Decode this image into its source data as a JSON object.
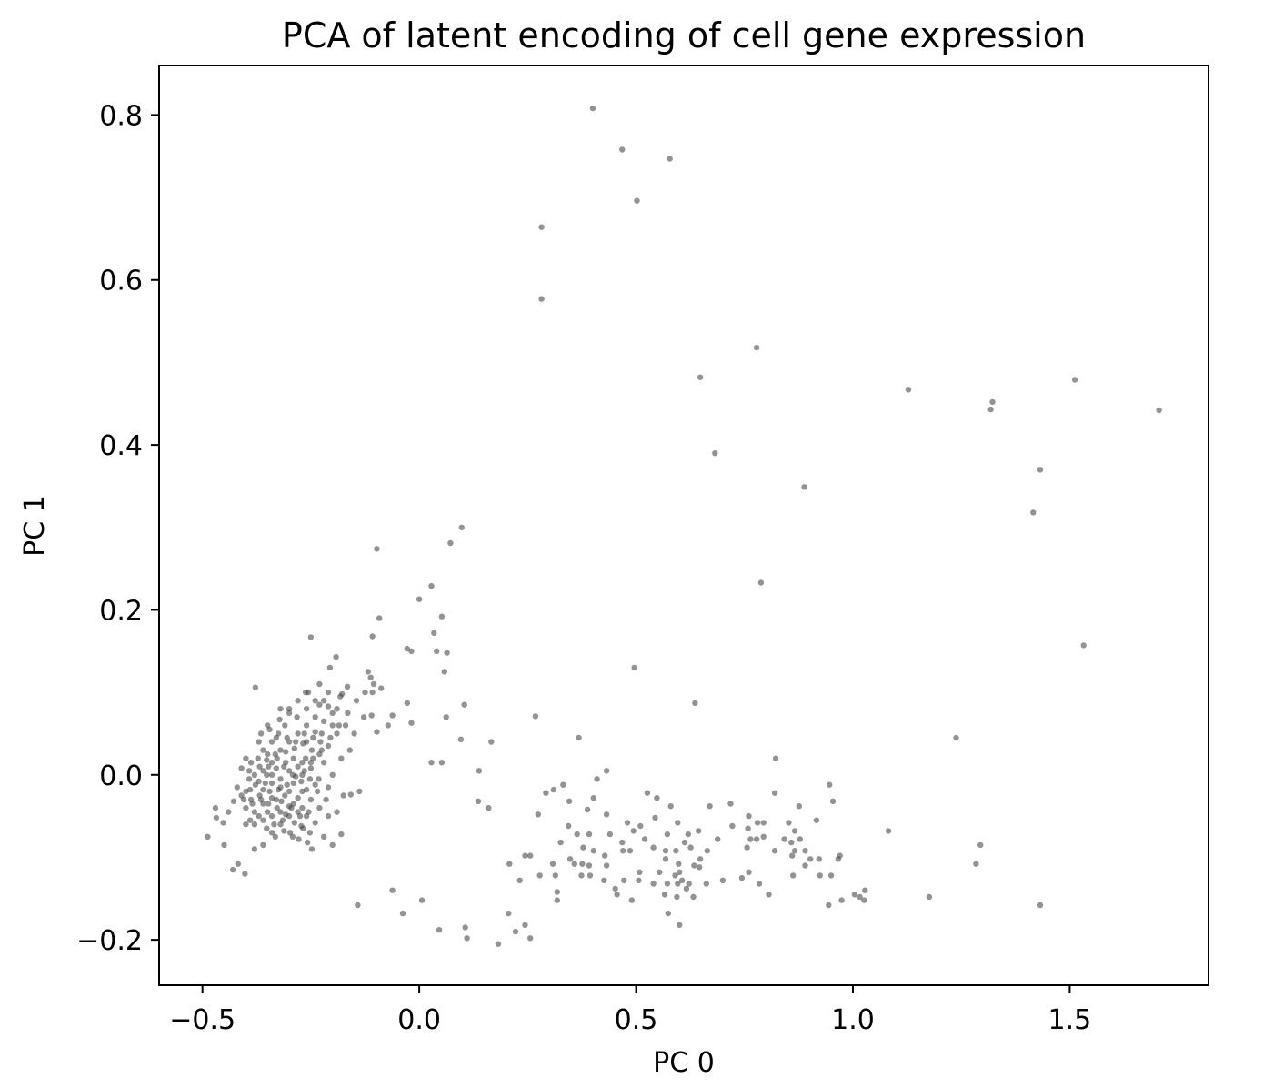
{
  "chart_data": {
    "type": "scatter",
    "title": "PCA of latent encoding of cell gene expression",
    "xlabel": "PC 0",
    "ylabel": "PC 1",
    "xlim": [
      -0.6,
      1.82
    ],
    "ylim": [
      -0.255,
      0.86
    ],
    "xticks": [
      {
        "value": -0.5,
        "label": "−0.5"
      },
      {
        "value": 0.0,
        "label": "0.0"
      },
      {
        "value": 0.5,
        "label": "0.5"
      },
      {
        "value": 1.0,
        "label": "1.0"
      },
      {
        "value": 1.5,
        "label": "1.5"
      }
    ],
    "yticks": [
      {
        "value": -0.2,
        "label": "−0.2"
      },
      {
        "value": 0.0,
        "label": "0.0"
      },
      {
        "value": 0.2,
        "label": "0.2"
      },
      {
        "value": 0.4,
        "label": "0.4"
      },
      {
        "value": 0.6,
        "label": "0.6"
      },
      {
        "value": 0.8,
        "label": "0.8"
      }
    ],
    "grid": false,
    "legend": "none",
    "point_color": "#3a3a3a",
    "point_opacity": 0.55,
    "points": [
      [
        0.4,
        0.808
      ],
      [
        0.468,
        0.758
      ],
      [
        0.578,
        0.747
      ],
      [
        0.502,
        0.696
      ],
      [
        0.282,
        0.664
      ],
      [
        0.282,
        0.577
      ],
      [
        0.778,
        0.518
      ],
      [
        0.648,
        0.482
      ],
      [
        1.128,
        0.467
      ],
      [
        1.512,
        0.479
      ],
      [
        1.322,
        0.452
      ],
      [
        1.318,
        0.443
      ],
      [
        1.706,
        0.442
      ],
      [
        0.682,
        0.39
      ],
      [
        0.888,
        0.349
      ],
      [
        1.432,
        0.37
      ],
      [
        1.416,
        0.318
      ],
      [
        0.788,
        0.233
      ],
      [
        1.532,
        0.157
      ],
      [
        0.496,
        0.13
      ],
      [
        0.636,
        0.087
      ],
      [
        1.238,
        0.045
      ],
      [
        0.822,
        0.02
      ],
      [
        0.268,
        0.071
      ],
      [
        0.098,
        0.3
      ],
      [
        0.072,
        0.281
      ],
      [
        -0.098,
        0.274
      ],
      [
        0.028,
        0.229
      ],
      [
        0.0,
        0.213
      ],
      [
        0.052,
        0.192
      ],
      [
        0.034,
        0.172
      ],
      [
        -0.092,
        0.19
      ],
      [
        -0.108,
        0.168
      ],
      [
        -0.028,
        0.153
      ],
      [
        -0.018,
        0.15
      ],
      [
        0.04,
        0.15
      ],
      [
        0.064,
        0.148
      ],
      [
        0.058,
        0.125
      ],
      [
        -0.118,
        0.125
      ],
      [
        -0.112,
        0.118
      ],
      [
        -0.088,
        0.105
      ],
      [
        -0.108,
        0.1
      ],
      [
        0.104,
        0.085
      ],
      [
        -0.028,
        0.087
      ],
      [
        -0.062,
        0.072
      ],
      [
        -0.11,
        0.072
      ],
      [
        -0.128,
        0.07
      ],
      [
        -0.072,
        0.06
      ],
      [
        -0.098,
        0.052
      ],
      [
        -0.018,
        0.063
      ],
      [
        0.062,
        0.07
      ],
      [
        0.096,
        0.043
      ],
      [
        0.166,
        0.04
      ],
      [
        0.028,
        0.015
      ],
      [
        0.052,
        0.015
      ],
      [
        0.138,
        0.005
      ],
      [
        -0.138,
        -0.02
      ],
      [
        -0.158,
        -0.024
      ],
      [
        0.136,
        -0.032
      ],
      [
        0.16,
        -0.04
      ],
      [
        0.368,
        0.045
      ],
      [
        0.432,
        0.005
      ],
      [
        0.41,
        -0.005
      ],
      [
        0.332,
        -0.012
      ],
      [
        0.31,
        -0.018
      ],
      [
        0.292,
        -0.022
      ],
      [
        0.402,
        -0.028
      ],
      [
        0.346,
        -0.032
      ],
      [
        0.526,
        -0.022
      ],
      [
        0.548,
        -0.028
      ],
      [
        0.58,
        -0.038
      ],
      [
        0.67,
        -0.038
      ],
      [
        0.718,
        -0.035
      ],
      [
        0.82,
        -0.022
      ],
      [
        0.876,
        -0.038
      ],
      [
        0.946,
        -0.012
      ],
      [
        0.954,
        -0.032
      ],
      [
        0.274,
        -0.048
      ],
      [
        0.388,
        -0.042
      ],
      [
        0.432,
        -0.048
      ],
      [
        0.48,
        -0.058
      ],
      [
        0.51,
        -0.062
      ],
      [
        0.544,
        -0.052
      ],
      [
        0.596,
        -0.058
      ],
      [
        0.62,
        -0.072
      ],
      [
        0.644,
        -0.068
      ],
      [
        0.76,
        -0.05
      ],
      [
        0.78,
        -0.058
      ],
      [
        0.794,
        -0.058
      ],
      [
        0.852,
        -0.058
      ],
      [
        0.866,
        -0.068
      ],
      [
        0.916,
        -0.055
      ],
      [
        0.344,
        -0.062
      ],
      [
        0.364,
        -0.072
      ],
      [
        0.392,
        -0.072
      ],
      [
        0.44,
        -0.072
      ],
      [
        0.468,
        -0.082
      ],
      [
        0.494,
        -0.068
      ],
      [
        0.52,
        -0.078
      ],
      [
        0.572,
        -0.072
      ],
      [
        0.612,
        -0.082
      ],
      [
        0.688,
        -0.078
      ],
      [
        0.722,
        -0.062
      ],
      [
        0.758,
        -0.065
      ],
      [
        0.764,
        -0.078
      ],
      [
        0.778,
        -0.078
      ],
      [
        0.794,
        -0.075
      ],
      [
        0.842,
        -0.078
      ],
      [
        0.858,
        -0.082
      ],
      [
        0.878,
        -0.078
      ],
      [
        1.082,
        -0.068
      ],
      [
        0.326,
        -0.082
      ],
      [
        0.378,
        -0.088
      ],
      [
        0.402,
        -0.092
      ],
      [
        0.428,
        -0.098
      ],
      [
        0.47,
        -0.092
      ],
      [
        0.486,
        -0.092
      ],
      [
        0.54,
        -0.088
      ],
      [
        0.568,
        -0.092
      ],
      [
        0.592,
        -0.092
      ],
      [
        0.626,
        -0.088
      ],
      [
        0.664,
        -0.092
      ],
      [
        0.756,
        -0.088
      ],
      [
        0.82,
        -0.092
      ],
      [
        0.866,
        -0.092
      ],
      [
        0.89,
        -0.092
      ],
      [
        0.244,
        -0.098
      ],
      [
        0.256,
        -0.098
      ],
      [
        0.348,
        -0.102
      ],
      [
        0.376,
        -0.108
      ],
      [
        0.432,
        -0.11
      ],
      [
        0.568,
        -0.102
      ],
      [
        0.598,
        -0.108
      ],
      [
        0.648,
        -0.102
      ],
      [
        0.86,
        -0.098
      ],
      [
        0.902,
        -0.102
      ],
      [
        0.922,
        -0.102
      ],
      [
        0.966,
        -0.102
      ],
      [
        0.97,
        -0.098
      ],
      [
        0.208,
        -0.108
      ],
      [
        0.308,
        -0.108
      ],
      [
        0.358,
        -0.108
      ],
      [
        0.392,
        -0.11
      ],
      [
        0.634,
        -0.11
      ],
      [
        0.89,
        -0.11
      ],
      [
        1.284,
        -0.108
      ],
      [
        1.294,
        -0.085
      ],
      [
        0.314,
        -0.122
      ],
      [
        0.374,
        -0.122
      ],
      [
        0.394,
        -0.122
      ],
      [
        0.508,
        -0.118
      ],
      [
        0.554,
        -0.118
      ],
      [
        0.6,
        -0.118
      ],
      [
        0.646,
        -0.112
      ],
      [
        0.76,
        -0.118
      ],
      [
        0.95,
        -0.122
      ],
      [
        0.232,
        -0.128
      ],
      [
        0.278,
        -0.122
      ],
      [
        0.426,
        -0.128
      ],
      [
        0.472,
        -0.128
      ],
      [
        0.54,
        -0.132
      ],
      [
        0.59,
        -0.122
      ],
      [
        0.606,
        -0.128
      ],
      [
        0.622,
        -0.132
      ],
      [
        0.744,
        -0.125
      ],
      [
        0.862,
        -0.122
      ],
      [
        0.924,
        -0.122
      ],
      [
        0.452,
        -0.138
      ],
      [
        0.506,
        -0.128
      ],
      [
        0.572,
        -0.132
      ],
      [
        0.596,
        -0.132
      ],
      [
        0.616,
        -0.138
      ],
      [
        0.662,
        -0.132
      ],
      [
        0.7,
        -0.128
      ],
      [
        0.784,
        -0.132
      ],
      [
        0.318,
        -0.142
      ],
      [
        0.456,
        -0.145
      ],
      [
        0.566,
        -0.145
      ],
      [
        0.594,
        -0.148
      ],
      [
        0.806,
        -0.145
      ],
      [
        1.004,
        -0.145
      ],
      [
        1.028,
        -0.14
      ],
      [
        1.176,
        -0.148
      ],
      [
        0.318,
        -0.152
      ],
      [
        0.49,
        -0.152
      ],
      [
        0.632,
        -0.148
      ],
      [
        0.944,
        -0.158
      ],
      [
        0.974,
        -0.152
      ],
      [
        1.026,
        -0.152
      ],
      [
        1.016,
        -0.148
      ],
      [
        1.432,
        -0.158
      ],
      [
        0.574,
        -0.168
      ],
      [
        0.6,
        -0.182
      ],
      [
        -0.142,
        -0.158
      ],
      [
        -0.062,
        -0.14
      ],
      [
        -0.038,
        -0.168
      ],
      [
        0.006,
        -0.152
      ],
      [
        0.046,
        -0.188
      ],
      [
        0.106,
        -0.185
      ],
      [
        0.11,
        -0.198
      ],
      [
        0.182,
        -0.205
      ],
      [
        0.206,
        -0.168
      ],
      [
        0.222,
        -0.19
      ],
      [
        0.244,
        -0.182
      ],
      [
        0.256,
        -0.198
      ],
      [
        -0.25,
        0.167
      ],
      [
        -0.378,
        0.106
      ],
      [
        -0.35,
        0.06
      ],
      [
        -0.322,
        0.067
      ],
      [
        -0.3,
        0.08
      ],
      [
        -0.262,
        0.1
      ],
      [
        -0.23,
        0.11
      ],
      [
        -0.206,
        0.13
      ],
      [
        -0.192,
        0.143
      ],
      [
        -0.166,
        0.107
      ],
      [
        -0.182,
        0.095
      ],
      [
        -0.2,
        0.075
      ],
      [
        -0.22,
        0.09
      ],
      [
        -0.24,
        0.052
      ],
      [
        -0.256,
        0.1
      ],
      [
        -0.178,
        0.098
      ],
      [
        -0.21,
        0.083
      ],
      [
        -0.228,
        0.04
      ],
      [
        -0.262,
        0.02
      ],
      [
        -0.282,
        0.07
      ],
      [
        -0.31,
        0.06
      ],
      [
        -0.33,
        0.045
      ],
      [
        -0.35,
        0.025
      ],
      [
        -0.37,
        0.04
      ],
      [
        -0.4,
        0.02
      ],
      [
        -0.41,
        0.008
      ],
      [
        -0.392,
        -0.005
      ],
      [
        -0.378,
        -0.012
      ],
      [
        -0.36,
        -0.018
      ],
      [
        -0.34,
        -0.028
      ],
      [
        -0.318,
        -0.032
      ],
      [
        -0.3,
        -0.038
      ],
      [
        -0.28,
        -0.045
      ],
      [
        -0.26,
        -0.05
      ],
      [
        -0.24,
        -0.058
      ],
      [
        -0.22,
        -0.075
      ],
      [
        -0.2,
        -0.085
      ],
      [
        -0.18,
        -0.072
      ],
      [
        -0.19,
        -0.045
      ],
      [
        -0.175,
        -0.025
      ],
      [
        -0.21,
        -0.015
      ],
      [
        -0.232,
        -0.005
      ],
      [
        -0.25,
        0.008
      ],
      [
        -0.27,
        0.015
      ],
      [
        -0.29,
        0.02
      ],
      [
        -0.308,
        0.015
      ],
      [
        -0.33,
        0.008
      ],
      [
        -0.352,
        0.0
      ],
      [
        -0.37,
        -0.008
      ],
      [
        -0.39,
        -0.018
      ],
      [
        -0.41,
        -0.025
      ],
      [
        -0.428,
        -0.032
      ],
      [
        -0.44,
        -0.045
      ],
      [
        -0.452,
        -0.058
      ],
      [
        -0.468,
        -0.052
      ],
      [
        -0.488,
        -0.075
      ],
      [
        -0.47,
        -0.04
      ],
      [
        -0.45,
        -0.085
      ],
      [
        -0.43,
        -0.115
      ],
      [
        -0.402,
        -0.12
      ],
      [
        -0.418,
        -0.108
      ],
      [
        -0.38,
        -0.09
      ],
      [
        -0.36,
        -0.085
      ],
      [
        -0.34,
        -0.07
      ],
      [
        -0.32,
        -0.06
      ],
      [
        -0.298,
        -0.07
      ],
      [
        -0.278,
        -0.078
      ],
      [
        -0.258,
        -0.082
      ],
      [
        -0.248,
        -0.09
      ],
      [
        -0.268,
        -0.065
      ],
      [
        -0.288,
        -0.058
      ],
      [
        -0.308,
        -0.048
      ],
      [
        -0.328,
        -0.04
      ],
      [
        -0.348,
        -0.035
      ],
      [
        -0.368,
        -0.025
      ],
      [
        -0.388,
        -0.03
      ],
      [
        -0.4,
        -0.04
      ],
      [
        -0.36,
        0.03
      ],
      [
        -0.34,
        0.015
      ],
      [
        -0.32,
        0.03
      ],
      [
        -0.3,
        0.04
      ],
      [
        -0.28,
        0.05
      ],
      [
        -0.26,
        0.06
      ],
      [
        -0.24,
        0.07
      ],
      [
        -0.22,
        0.065
      ],
      [
        -0.248,
        0.03
      ],
      [
        -0.268,
        0.038
      ],
      [
        -0.288,
        0.032
      ],
      [
        -0.308,
        0.028
      ],
      [
        -0.328,
        0.02
      ],
      [
        -0.348,
        0.01
      ],
      [
        -0.368,
        0.01
      ],
      [
        -0.388,
        0.015
      ],
      [
        -0.29,
        -0.01
      ],
      [
        -0.27,
        -0.02
      ],
      [
        -0.25,
        -0.03
      ],
      [
        -0.23,
        -0.04
      ],
      [
        -0.21,
        -0.05
      ],
      [
        -0.3,
        -0.02
      ],
      [
        -0.32,
        -0.015
      ],
      [
        -0.34,
        -0.01
      ],
      [
        -0.36,
        -0.035
      ],
      [
        -0.38,
        -0.045
      ],
      [
        -0.4,
        -0.06
      ],
      [
        -0.42,
        -0.015
      ],
      [
        -0.26,
        0.08
      ],
      [
        -0.24,
        0.09
      ],
      [
        -0.28,
        0.09
      ],
      [
        -0.3,
        0.075
      ],
      [
        -0.32,
        0.08
      ],
      [
        -0.27,
        0.0
      ],
      [
        -0.25,
        0.015
      ],
      [
        -0.23,
        0.025
      ],
      [
        -0.21,
        0.035
      ],
      [
        -0.19,
        0.05
      ],
      [
        -0.2,
        0.06
      ],
      [
        -0.22,
        0.015
      ],
      [
        -0.24,
        -0.012
      ],
      [
        -0.26,
        -0.018
      ],
      [
        -0.28,
        -0.028
      ],
      [
        -0.3,
        -0.05
      ],
      [
        -0.32,
        -0.045
      ],
      [
        -0.34,
        -0.05
      ],
      [
        -0.36,
        -0.055
      ],
      [
        -0.38,
        -0.06
      ],
      [
        -0.4,
        -0.02
      ],
      [
        -0.38,
        0.0
      ],
      [
        -0.36,
        0.005
      ],
      [
        -0.34,
        0.0
      ],
      [
        -0.32,
        -0.005
      ],
      [
        -0.3,
        0.005
      ],
      [
        -0.28,
        0.01
      ],
      [
        -0.26,
        0.04
      ],
      [
        -0.34,
        0.04
      ],
      [
        -0.31,
        -0.025
      ],
      [
        -0.33,
        -0.03
      ],
      [
        -0.35,
        -0.045
      ],
      [
        -0.37,
        -0.05
      ],
      [
        -0.39,
        -0.055
      ],
      [
        -0.27,
        -0.04
      ],
      [
        -0.29,
        -0.035
      ],
      [
        -0.2,
        0.0
      ],
      [
        -0.18,
        0.02
      ],
      [
        -0.16,
        0.03
      ],
      [
        -0.15,
        0.05
      ],
      [
        -0.17,
        0.06
      ],
      [
        -0.19,
        0.08
      ],
      [
        -0.21,
        0.1
      ],
      [
        -0.23,
        0.085
      ],
      [
        -0.352,
        -0.065
      ],
      [
        -0.332,
        -0.075
      ],
      [
        -0.312,
        -0.068
      ],
      [
        -0.292,
        -0.075
      ],
      [
        -0.272,
        -0.062
      ],
      [
        -0.252,
        -0.07
      ],
      [
        -0.392,
        0.005
      ],
      [
        -0.372,
        0.02
      ],
      [
        -0.352,
        0.018
      ],
      [
        -0.332,
        0.025
      ],
      [
        -0.312,
        0.01
      ],
      [
        -0.292,
        0.0
      ],
      [
        -0.272,
        -0.008
      ],
      [
        -0.252,
        -0.005
      ],
      [
        -0.405,
        -0.03
      ],
      [
        -0.385,
        -0.035
      ],
      [
        -0.365,
        -0.03
      ],
      [
        -0.345,
        -0.02
      ],
      [
        -0.325,
        -0.018
      ],
      [
        -0.305,
        -0.012
      ],
      [
        -0.285,
        -0.002
      ],
      [
        -0.265,
        0.005
      ],
      [
        -0.245,
        0.02
      ],
      [
        -0.225,
        0.03
      ],
      [
        -0.205,
        0.045
      ],
      [
        -0.185,
        0.06
      ],
      [
        -0.165,
        0.075
      ],
      [
        -0.145,
        0.09
      ],
      [
        -0.125,
        0.1
      ],
      [
        -0.105,
        0.11
      ],
      [
        -0.365,
        0.05
      ],
      [
        -0.345,
        0.055
      ],
      [
        -0.325,
        0.05
      ],
      [
        -0.305,
        0.045
      ],
      [
        -0.285,
        0.04
      ],
      [
        -0.265,
        0.05
      ],
      [
        -0.245,
        0.045
      ],
      [
        -0.225,
        0.05
      ],
      [
        -0.355,
        -0.01
      ],
      [
        -0.335,
        -0.06
      ],
      [
        -0.315,
        -0.055
      ],
      [
        -0.295,
        -0.04
      ],
      [
        -0.275,
        -0.05
      ],
      [
        -0.255,
        -0.045
      ],
      [
        -0.235,
        -0.02
      ],
      [
        -0.215,
        -0.03
      ]
    ]
  }
}
